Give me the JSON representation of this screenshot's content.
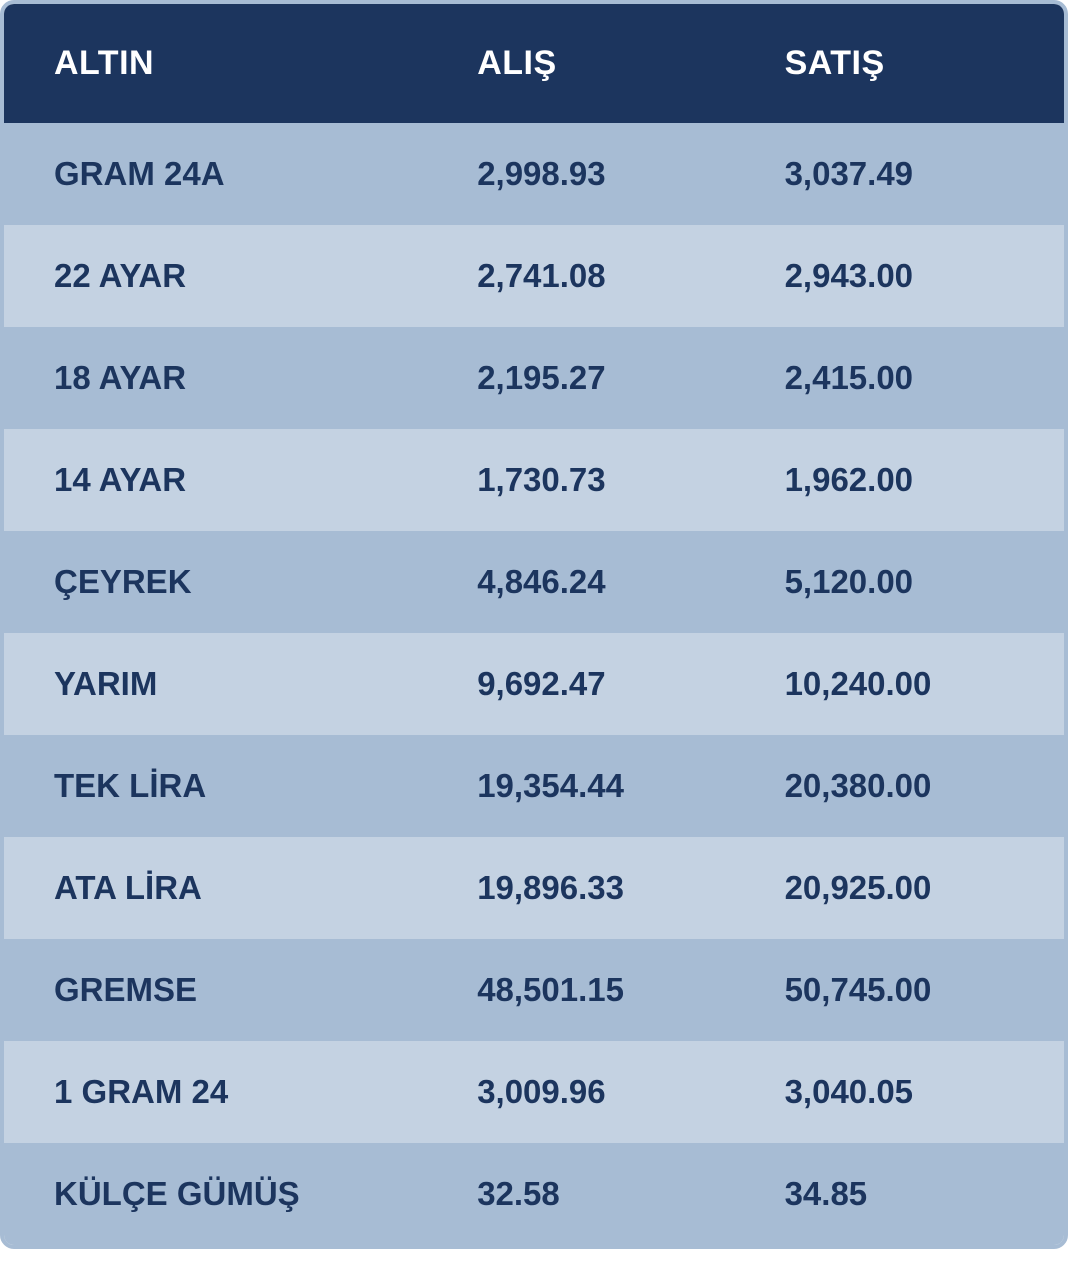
{
  "table": {
    "type": "table",
    "header_bg": "#1c355e",
    "header_text_color": "#ffffff",
    "row_odd_bg": "#a7bcd4",
    "row_even_bg": "#c4d2e2",
    "cell_text_color": "#1c355e",
    "border_color": "#a7bcd4",
    "header_fontsize": 34,
    "cell_fontsize": 33,
    "font_weight": 700,
    "columns": [
      "ALTIN",
      "ALIŞ",
      "SATIŞ"
    ],
    "rows": [
      {
        "name": "GRAM 24A",
        "buy": "2,998.93",
        "sell": "3,037.49"
      },
      {
        "name": "22 AYAR",
        "buy": "2,741.08",
        "sell": "2,943.00"
      },
      {
        "name": "18 AYAR",
        "buy": "2,195.27",
        "sell": "2,415.00"
      },
      {
        "name": "14 AYAR",
        "buy": "1,730.73",
        "sell": "1,962.00"
      },
      {
        "name": "ÇEYREK",
        "buy": "4,846.24",
        "sell": "5,120.00"
      },
      {
        "name": "YARIM",
        "buy": "9,692.47",
        "sell": "10,240.00"
      },
      {
        "name": "TEK LİRA",
        "buy": "19,354.44",
        "sell": "20,380.00"
      },
      {
        "name": "ATA LİRA",
        "buy": "19,896.33",
        "sell": "20,925.00"
      },
      {
        "name": "GREMSE",
        "buy": "48,501.15",
        "sell": "50,745.00"
      },
      {
        "name": "1 GRAM 24",
        "buy": "3,009.96",
        "sell": "3,040.05"
      },
      {
        "name": "KÜLÇE GÜMÜŞ",
        "buy": "32.58",
        "sell": "34.85"
      }
    ]
  }
}
